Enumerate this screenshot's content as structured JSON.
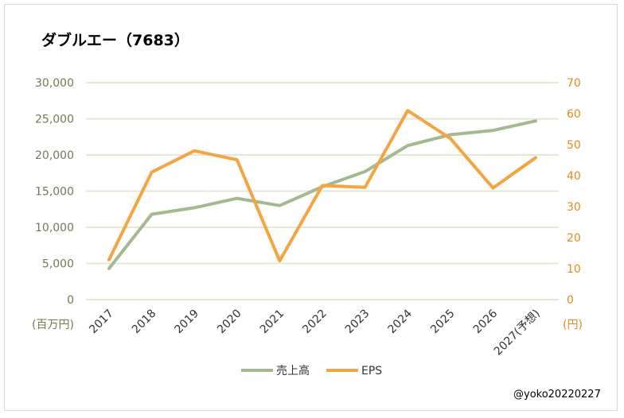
{
  "chart_data": {
    "type": "line",
    "title": "ダブルエー（7683）",
    "categories": [
      "2017",
      "2018",
      "2019",
      "2020",
      "2021",
      "2022",
      "2023",
      "2024",
      "2025",
      "2026",
      "2027(予想)"
    ],
    "series": [
      {
        "name": "売上高",
        "axis": "left",
        "color": "#a5b98f",
        "values": [
          4300,
          11800,
          12700,
          14000,
          13000,
          15600,
          17700,
          21300,
          22800,
          23400,
          24700
        ]
      },
      {
        "name": "EPS",
        "axis": "right",
        "color": "#f5a442",
        "values": [
          12.9,
          41.1,
          48.0,
          45.1,
          12.5,
          36.8,
          36.2,
          61.0,
          52.0,
          36.0,
          45.8
        ]
      }
    ],
    "left_axis": {
      "unit_label": "(百万円)",
      "ylim": [
        0,
        30000
      ],
      "ticks": [
        "0",
        "5,000",
        "10,000",
        "15,000",
        "20,000",
        "25,000",
        "30,000"
      ]
    },
    "right_axis": {
      "unit_label": "(円)",
      "ylim": [
        0,
        70
      ],
      "ticks": [
        "0",
        "10",
        "20",
        "30",
        "40",
        "50",
        "60",
        "70"
      ]
    },
    "grid": true,
    "legend": "bottom"
  },
  "credit": "@yoko20220227"
}
